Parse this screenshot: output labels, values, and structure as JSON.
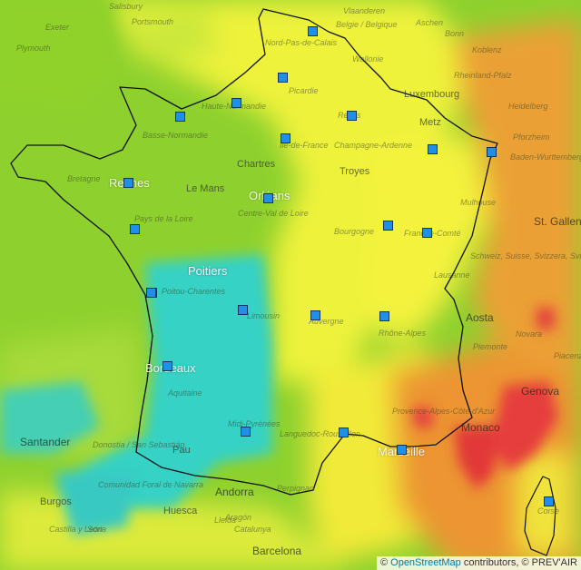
{
  "map": {
    "colors": {
      "green": "#8ed12e",
      "yellow": "#f2f23c",
      "orange": "#eb9b32",
      "red": "#e63c3c",
      "cyan": "#35d1c6",
      "station": "#1f8fe8"
    },
    "labels": [
      {
        "text": "Salisbury",
        "style": "dim"
      },
      {
        "text": "Portsmouth",
        "style": "dim"
      },
      {
        "text": "Exeter",
        "style": "dim"
      },
      {
        "text": "Plymouth",
        "style": "dim"
      },
      {
        "text": "Vlaanderen",
        "style": "dim"
      },
      {
        "text": "Belgie / Belgique",
        "style": "dim"
      },
      {
        "text": "Aschen",
        "style": "dim"
      },
      {
        "text": "Bonn",
        "style": "dim"
      },
      {
        "text": "Koblenz",
        "style": "dim"
      },
      {
        "text": "Nord-Pas-de-Calais",
        "style": "dim"
      },
      {
        "text": "Wallonie",
        "style": "dim"
      },
      {
        "text": "Luxembourg",
        "style": "city"
      },
      {
        "text": "Rheinland-Pfalz",
        "style": "dim"
      },
      {
        "text": "Picardie",
        "style": "dim"
      },
      {
        "text": "Heidelberg",
        "style": "dim"
      },
      {
        "text": "Haute-Normandie",
        "style": "dim"
      },
      {
        "text": "Reims",
        "style": "dim"
      },
      {
        "text": "Metz",
        "style": "city"
      },
      {
        "text": "Basse-Normandie",
        "style": "dim"
      },
      {
        "text": "Ile-de-France",
        "style": "dim"
      },
      {
        "text": "Champagne-Ardenne",
        "style": "dim"
      },
      {
        "text": "Pforzheim",
        "style": "dim"
      },
      {
        "text": "Baden-Wurttemberg",
        "style": "dim"
      },
      {
        "text": "Chartres",
        "style": "city"
      },
      {
        "text": "Troyes",
        "style": "city"
      },
      {
        "text": "Bretagne",
        "style": "dim"
      },
      {
        "text": "Rennes",
        "style": "big"
      },
      {
        "text": "Le Mans",
        "style": "city"
      },
      {
        "text": "Orléans",
        "style": "big"
      },
      {
        "text": "Mulhouse",
        "style": "dim"
      },
      {
        "text": "Centre-Val de Loire",
        "style": "dim"
      },
      {
        "text": "Pays de la Loire",
        "style": "dim"
      },
      {
        "text": "St. Gallen",
        "style": "bigdark"
      },
      {
        "text": "Bourgogne",
        "style": "dim"
      },
      {
        "text": "Franche-Comté",
        "style": "dim"
      },
      {
        "text": "Schweiz, Suisse, Svizzera, Svizra",
        "style": "dim"
      },
      {
        "text": "Lausanne",
        "style": "dim"
      },
      {
        "text": "Poitiers",
        "style": "big"
      },
      {
        "text": "Poitou-Charentes",
        "style": "dim"
      },
      {
        "text": "Limousin",
        "style": "dim"
      },
      {
        "text": "Auvergne",
        "style": "dim"
      },
      {
        "text": "Aosta",
        "style": "bigdark"
      },
      {
        "text": "Rhône-Alpes",
        "style": "dim"
      },
      {
        "text": "Novara",
        "style": "dim"
      },
      {
        "text": "Bordeaux",
        "style": "big"
      },
      {
        "text": "Piemonte",
        "style": "dim"
      },
      {
        "text": "Piacenza",
        "style": "dim"
      },
      {
        "text": "Aquitaine",
        "style": "dim"
      },
      {
        "text": "Genova",
        "style": "bigdark"
      },
      {
        "text": "Provence-Alpes-Côte d'Azur",
        "style": "dim"
      },
      {
        "text": "Midi-Pyrénées",
        "style": "dim"
      },
      {
        "text": "Monaco",
        "style": "bigdark"
      },
      {
        "text": "Santander",
        "style": "bigdark"
      },
      {
        "text": "Donostia / San Sebastián",
        "style": "dim"
      },
      {
        "text": "Languedoc-Roussillon",
        "style": "dim"
      },
      {
        "text": "Marseille",
        "style": "big"
      },
      {
        "text": "Pau",
        "style": "city"
      },
      {
        "text": "Comunidad Foral de Navarra",
        "style": "dim"
      },
      {
        "text": "Andorra",
        "style": "bigdark"
      },
      {
        "text": "Burgos",
        "style": "city"
      },
      {
        "text": "Huesca",
        "style": "city"
      },
      {
        "text": "Lleida",
        "style": "dim"
      },
      {
        "text": "Castilla y León",
        "style": "dim"
      },
      {
        "text": "Soria",
        "style": "dim"
      },
      {
        "text": "Catalunya",
        "style": "dim"
      },
      {
        "text": "Barcelona",
        "style": "bigdark"
      },
      {
        "text": "Aragón",
        "style": "dim"
      },
      {
        "text": "Corse",
        "style": "dim"
      },
      {
        "text": "Perpignan",
        "style": "dim"
      }
    ],
    "stations": [
      "Lille",
      "Amiens",
      "Rouen",
      "Caen",
      "Reims",
      "Paris",
      "Strasbourg",
      "Nancy",
      "Rennes",
      "Orléans",
      "Nantes",
      "Dijon",
      "Besançon",
      "Poitiers",
      "La Rochelle",
      "Limoges",
      "Clermont-Ferrand",
      "Lyon",
      "Bordeaux",
      "Toulouse",
      "Montpellier",
      "Marseille",
      "Ajaccio"
    ]
  },
  "attribution": {
    "prefix": "©",
    "link": "OpenStreetMap",
    "suffix": "contributors, © PREV'AIR"
  }
}
